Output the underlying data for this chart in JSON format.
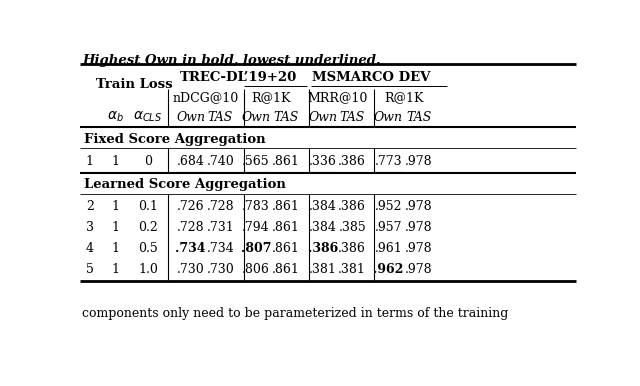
{
  "title_top": "Highest Own in bold, lowest underlined.",
  "footer_text": "components only need to be parameterized in terms of the training",
  "section1": "Fixed Score Aggregation",
  "section2": "Learned Score Aggregation",
  "rows": [
    {
      "id": "1",
      "ab": "1",
      "acls": "0",
      "v": [
        ".684",
        ".740",
        ".565",
        ".861",
        ".336",
        ".386",
        ".773",
        ".978"
      ],
      "bold": [
        false,
        false,
        false,
        false,
        false,
        false,
        false,
        false
      ],
      "underline": [
        true,
        false,
        true,
        false,
        true,
        false,
        true,
        false
      ]
    },
    {
      "id": "2",
      "ab": "1",
      "acls": "0.1",
      "v": [
        ".726",
        ".728",
        ".783",
        ".861",
        ".384",
        ".386",
        ".952",
        ".978"
      ],
      "bold": [
        false,
        false,
        false,
        false,
        false,
        false,
        false,
        false
      ],
      "underline": [
        false,
        false,
        false,
        false,
        false,
        false,
        false,
        false
      ]
    },
    {
      "id": "3",
      "ab": "1",
      "acls": "0.2",
      "v": [
        ".728",
        ".731",
        ".794",
        ".861",
        ".384",
        ".385",
        ".957",
        ".978"
      ],
      "bold": [
        false,
        false,
        false,
        false,
        false,
        false,
        false,
        false
      ],
      "underline": [
        false,
        false,
        false,
        false,
        false,
        false,
        false,
        false
      ]
    },
    {
      "id": "4",
      "ab": "1",
      "acls": "0.5",
      "v": [
        ".734",
        ".734",
        ".807",
        ".861",
        ".386",
        ".386",
        ".961",
        ".978"
      ],
      "bold": [
        true,
        false,
        true,
        false,
        true,
        false,
        false,
        false
      ],
      "underline": [
        false,
        false,
        false,
        false,
        false,
        false,
        false,
        false
      ]
    },
    {
      "id": "5",
      "ab": "1",
      "acls": "1.0",
      "v": [
        ".730",
        ".730",
        ".806",
        ".861",
        ".381",
        ".381",
        ".962",
        ".978"
      ],
      "bold": [
        false,
        false,
        false,
        false,
        false,
        false,
        true,
        false
      ],
      "underline": [
        false,
        false,
        false,
        false,
        false,
        false,
        false,
        false
      ]
    }
  ],
  "background_color": "#ffffff",
  "font_size": 9.0
}
